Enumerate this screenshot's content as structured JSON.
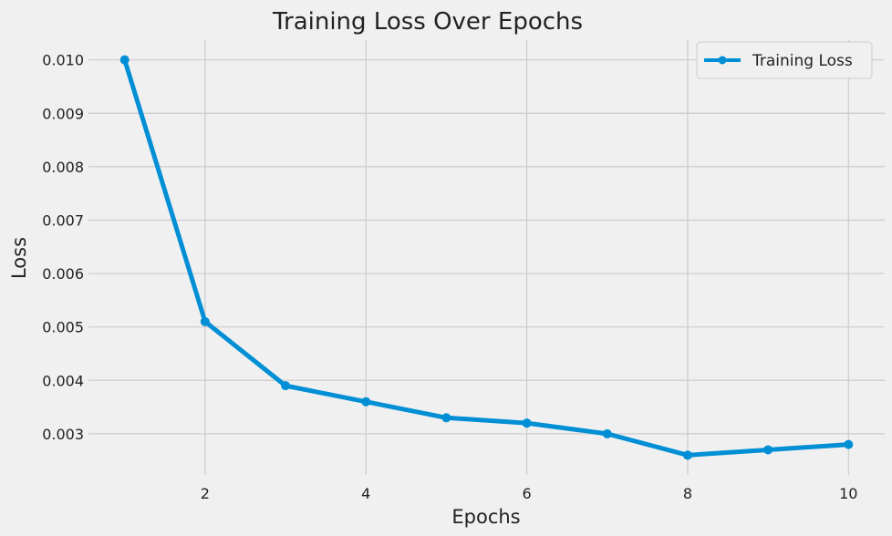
{
  "chart_data": {
    "type": "line",
    "title": "Training Loss Over Epochs",
    "xlabel": "Epochs",
    "ylabel": "Loss",
    "x": [
      1,
      2,
      3,
      4,
      5,
      6,
      7,
      8,
      9,
      10
    ],
    "series": [
      {
        "name": "Training Loss",
        "values": [
          0.01,
          0.0051,
          0.0039,
          0.0036,
          0.0033,
          0.0032,
          0.003,
          0.0026,
          0.0027,
          0.0028
        ],
        "color": "#008fd5"
      }
    ],
    "xticks": [
      2,
      4,
      6,
      8,
      10
    ],
    "xtick_labels": [
      "2",
      "4",
      "6",
      "8",
      "10"
    ],
    "yticks": [
      0.003,
      0.004,
      0.005,
      0.006,
      0.007,
      0.008,
      0.009,
      0.01
    ],
    "ytick_labels": [
      "0.003",
      "0.004",
      "0.005",
      "0.006",
      "0.007",
      "0.008",
      "0.009",
      "0.010"
    ],
    "xlim": [
      0.55,
      10.45
    ],
    "ylim": [
      0.00223,
      0.01037
    ],
    "grid": true,
    "legend_position": "top-right",
    "background": "#f0f0f0",
    "grid_color": "#cbcbcb"
  }
}
